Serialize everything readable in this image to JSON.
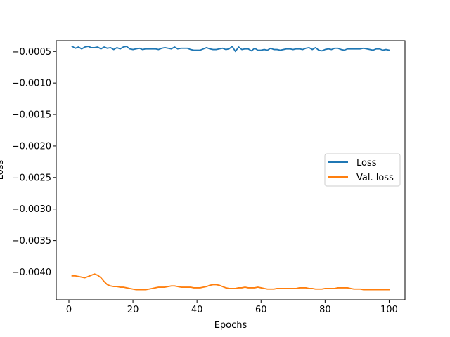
{
  "chart_data": {
    "type": "line",
    "title": "",
    "xlabel": "Epochs",
    "ylabel": "Loss",
    "xlim": [
      -3.95,
      104.95
    ],
    "ylim": [
      -0.00444,
      -0.00033
    ],
    "xticks": [
      0,
      20,
      40,
      60,
      80,
      100
    ],
    "xtick_labels": [
      "0",
      "20",
      "40",
      "60",
      "80",
      "100"
    ],
    "yticks": [
      -0.0005,
      -0.001,
      -0.0015,
      -0.002,
      -0.0025,
      -0.003,
      -0.0035,
      -0.004
    ],
    "ytick_labels": [
      "−0.0005",
      "−0.0010",
      "−0.0015",
      "−0.0020",
      "−0.0025",
      "−0.0030",
      "−0.0035",
      "−0.0040"
    ],
    "grid": false,
    "legend_position": "center-right",
    "series": [
      {
        "name": "Loss",
        "color": "#1f77b4",
        "x": [
          1,
          2,
          3,
          4,
          5,
          6,
          7,
          8,
          9,
          10,
          11,
          12,
          13,
          14,
          15,
          16,
          17,
          18,
          19,
          20,
          21,
          22,
          23,
          24,
          25,
          26,
          27,
          28,
          29,
          30,
          31,
          32,
          33,
          34,
          35,
          36,
          37,
          38,
          39,
          40,
          41,
          42,
          43,
          44,
          45,
          46,
          47,
          48,
          49,
          50,
          51,
          52,
          53,
          54,
          55,
          56,
          57,
          58,
          59,
          60,
          61,
          62,
          63,
          64,
          65,
          66,
          67,
          68,
          69,
          70,
          71,
          72,
          73,
          74,
          75,
          76,
          77,
          78,
          79,
          80,
          81,
          82,
          83,
          84,
          85,
          86,
          87,
          88,
          89,
          90,
          91,
          92,
          93,
          94,
          95,
          96,
          97,
          98,
          99,
          100
        ],
        "y": [
          -0.00042,
          -0.00045,
          -0.00043,
          -0.00046,
          -0.00043,
          -0.00042,
          -0.00044,
          -0.00044,
          -0.00043,
          -0.00046,
          -0.00043,
          -0.00045,
          -0.00044,
          -0.00047,
          -0.00044,
          -0.00046,
          -0.00043,
          -0.00042,
          -0.00046,
          -0.00047,
          -0.00046,
          -0.00045,
          -0.00047,
          -0.00046,
          -0.00046,
          -0.00046,
          -0.00046,
          -0.00047,
          -0.00045,
          -0.00044,
          -0.00045,
          -0.00046,
          -0.00043,
          -0.00046,
          -0.00045,
          -0.00045,
          -0.00045,
          -0.00047,
          -0.00048,
          -0.00048,
          -0.00048,
          -0.00046,
          -0.00044,
          -0.00046,
          -0.00047,
          -0.00047,
          -0.00046,
          -0.00045,
          -0.00047,
          -0.00046,
          -0.00042,
          -0.0005,
          -0.00043,
          -0.00047,
          -0.00046,
          -0.00046,
          -0.00049,
          -0.00045,
          -0.00048,
          -0.00048,
          -0.00047,
          -0.00048,
          -0.00045,
          -0.00047,
          -0.00047,
          -0.00048,
          -0.00047,
          -0.00046,
          -0.00046,
          -0.00047,
          -0.00046,
          -0.00046,
          -0.00047,
          -0.00045,
          -0.00044,
          -0.00047,
          -0.00044,
          -0.00048,
          -0.00049,
          -0.00047,
          -0.00046,
          -0.00047,
          -0.00045,
          -0.00045,
          -0.00047,
          -0.00048,
          -0.00046,
          -0.00046,
          -0.00046,
          -0.00046,
          -0.00046,
          -0.00045,
          -0.00046,
          -0.00047,
          -0.00048,
          -0.00046,
          -0.00046,
          -0.00048,
          -0.00047,
          -0.00048
        ]
      },
      {
        "name": "Val. loss",
        "color": "#ff7f0e",
        "x": [
          1,
          2,
          3,
          4,
          5,
          6,
          7,
          8,
          9,
          10,
          11,
          12,
          13,
          14,
          15,
          16,
          17,
          18,
          19,
          20,
          21,
          22,
          23,
          24,
          25,
          26,
          27,
          28,
          29,
          30,
          31,
          32,
          33,
          34,
          35,
          36,
          37,
          38,
          39,
          40,
          41,
          42,
          43,
          44,
          45,
          46,
          47,
          48,
          49,
          50,
          51,
          52,
          53,
          54,
          55,
          56,
          57,
          58,
          59,
          60,
          61,
          62,
          63,
          64,
          65,
          66,
          67,
          68,
          69,
          70,
          71,
          72,
          73,
          74,
          75,
          76,
          77,
          78,
          79,
          80,
          81,
          82,
          83,
          84,
          85,
          86,
          87,
          88,
          89,
          90,
          91,
          92,
          93,
          94,
          95,
          96,
          97,
          98,
          99,
          100
        ],
        "y": [
          -0.00406,
          -0.00406,
          -0.00407,
          -0.00408,
          -0.00409,
          -0.00407,
          -0.00405,
          -0.00403,
          -0.00405,
          -0.00409,
          -0.00415,
          -0.0042,
          -0.00422,
          -0.00423,
          -0.00423,
          -0.00424,
          -0.00424,
          -0.00425,
          -0.00426,
          -0.00427,
          -0.00428,
          -0.00428,
          -0.00428,
          -0.00428,
          -0.00427,
          -0.00426,
          -0.00425,
          -0.00424,
          -0.00424,
          -0.00424,
          -0.00423,
          -0.00422,
          -0.00422,
          -0.00423,
          -0.00424,
          -0.00424,
          -0.00424,
          -0.00424,
          -0.00425,
          -0.00425,
          -0.00425,
          -0.00424,
          -0.00423,
          -0.00421,
          -0.0042,
          -0.0042,
          -0.00421,
          -0.00423,
          -0.00425,
          -0.00426,
          -0.00426,
          -0.00426,
          -0.00425,
          -0.00425,
          -0.00424,
          -0.00425,
          -0.00425,
          -0.00425,
          -0.00424,
          -0.00425,
          -0.00426,
          -0.00427,
          -0.00427,
          -0.00427,
          -0.00426,
          -0.00426,
          -0.00426,
          -0.00426,
          -0.00426,
          -0.00426,
          -0.00426,
          -0.00425,
          -0.00425,
          -0.00425,
          -0.00426,
          -0.00426,
          -0.00427,
          -0.00427,
          -0.00427,
          -0.00426,
          -0.00426,
          -0.00426,
          -0.00426,
          -0.00425,
          -0.00425,
          -0.00425,
          -0.00425,
          -0.00426,
          -0.00427,
          -0.00427,
          -0.00427,
          -0.00428,
          -0.00428,
          -0.00428,
          -0.00428,
          -0.00428,
          -0.00428,
          -0.00428,
          -0.00428,
          -0.00428
        ]
      }
    ]
  }
}
